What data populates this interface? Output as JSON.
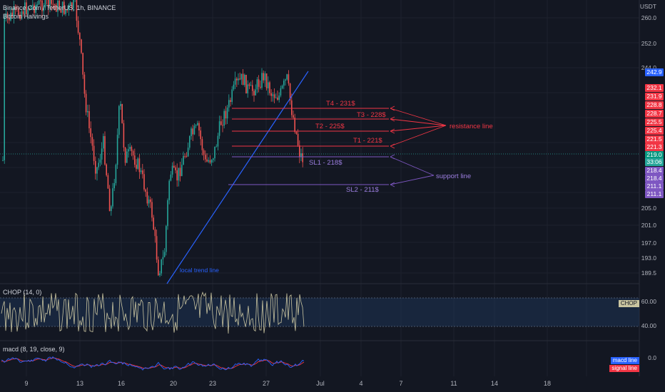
{
  "header": {
    "title": "Binance Coin / TetherUS, 1h, BINANCE",
    "subtitle": "Bitcoin Halvings"
  },
  "price_axis": {
    "currency": "USDT",
    "ticks": [
      "260.0",
      "252.0",
      "244.0",
      "205.0",
      "201.0",
      "197.0",
      "193.0",
      "189.5"
    ]
  },
  "price_tags": [
    {
      "value": "242.9",
      "color": "#2962ff"
    },
    {
      "value": "232.1",
      "color": "#f23645"
    },
    {
      "value": "231.9",
      "color": "#f23645"
    },
    {
      "value": "228.8",
      "color": "#f23645"
    },
    {
      "value": "228.7",
      "color": "#f23645"
    },
    {
      "value": "225.5",
      "color": "#f23645"
    },
    {
      "value": "225.4",
      "color": "#f23645"
    },
    {
      "value": "221.5",
      "color": "#f23645"
    },
    {
      "value": "221.3",
      "color": "#f23645"
    },
    {
      "value": "219.0",
      "color": "#089981"
    },
    {
      "value": "33:06",
      "color": "#26a69a"
    },
    {
      "value": "218.4",
      "color": "#7e57c2"
    },
    {
      "value": "218.4",
      "color": "#7e57c2"
    },
    {
      "value": "211.1",
      "color": "#7e57c2"
    },
    {
      "value": "211.1",
      "color": "#7e57c2"
    }
  ],
  "annotations": {
    "t4": "T4 - 231$",
    "t3": "T3 - 228$",
    "t2": "T2 - 225$",
    "t1": "T1 - 221$",
    "sl1": "SL1 - 218$",
    "sl2": "SL2 - 211$",
    "resistance": "resistance line",
    "support": "support line",
    "trend": "local trend line"
  },
  "indicators": {
    "chop": {
      "label": "CHOP (14, 0)",
      "tag": "CHOP",
      "levels": [
        "60.00",
        "40.00"
      ]
    },
    "macd": {
      "label": "macd (8, 19, close, 9)",
      "zero": "0.0",
      "macd_line": "macd line",
      "signal_line": "signal line"
    }
  },
  "time_axis": [
    "9",
    "13",
    "16",
    "20",
    "23",
    "27",
    "Jul",
    "4",
    "7",
    "11",
    "14",
    "18"
  ],
  "colors": {
    "bg": "#131722",
    "up": "#26a69a",
    "down": "#ef5350",
    "resistance": "#f23645",
    "support": "#7e57c2",
    "trend": "#2962ff",
    "chop": "#c9c4a0",
    "macd": "#2962ff",
    "signal": "#f23645"
  }
}
